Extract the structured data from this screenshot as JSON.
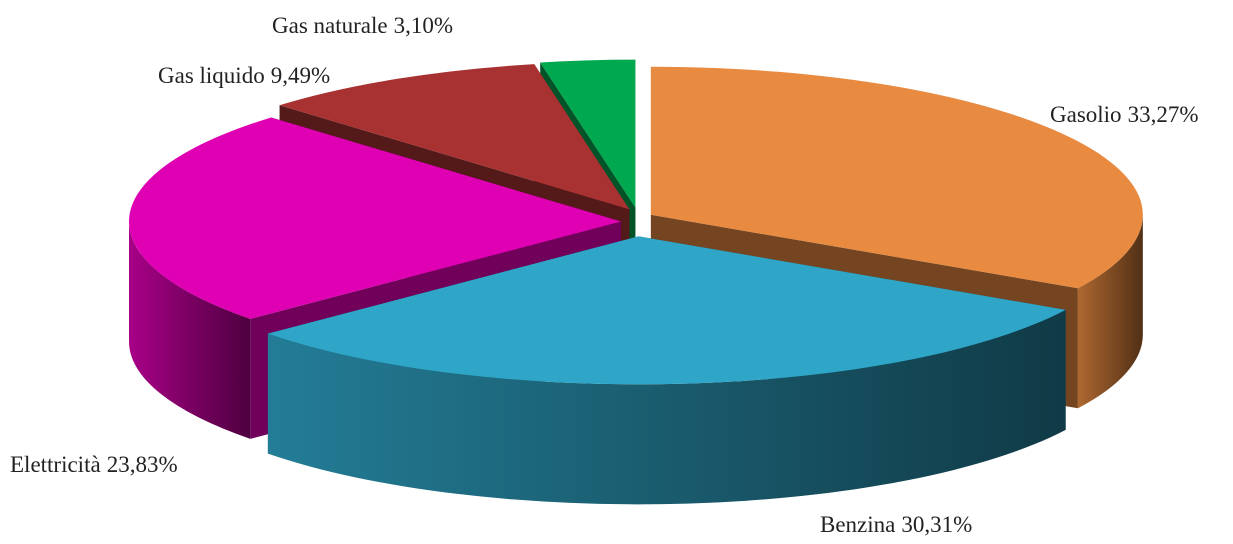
{
  "chart_data": {
    "type": "pie3d",
    "categories": [
      "Gasolio",
      "Benzina",
      "Elettricità",
      "Gas liquido",
      "Gas naturale"
    ],
    "values": [
      33.27,
      30.31,
      23.83,
      9.49,
      3.1
    ],
    "value_labels": [
      "33,27%",
      "30,31%",
      "23,83%",
      "9,49%",
      "3,10%"
    ],
    "colors": [
      "#e88a40",
      "#2fa6c8",
      "#e000b4",
      "#a83232",
      "#00a84f"
    ]
  }
}
